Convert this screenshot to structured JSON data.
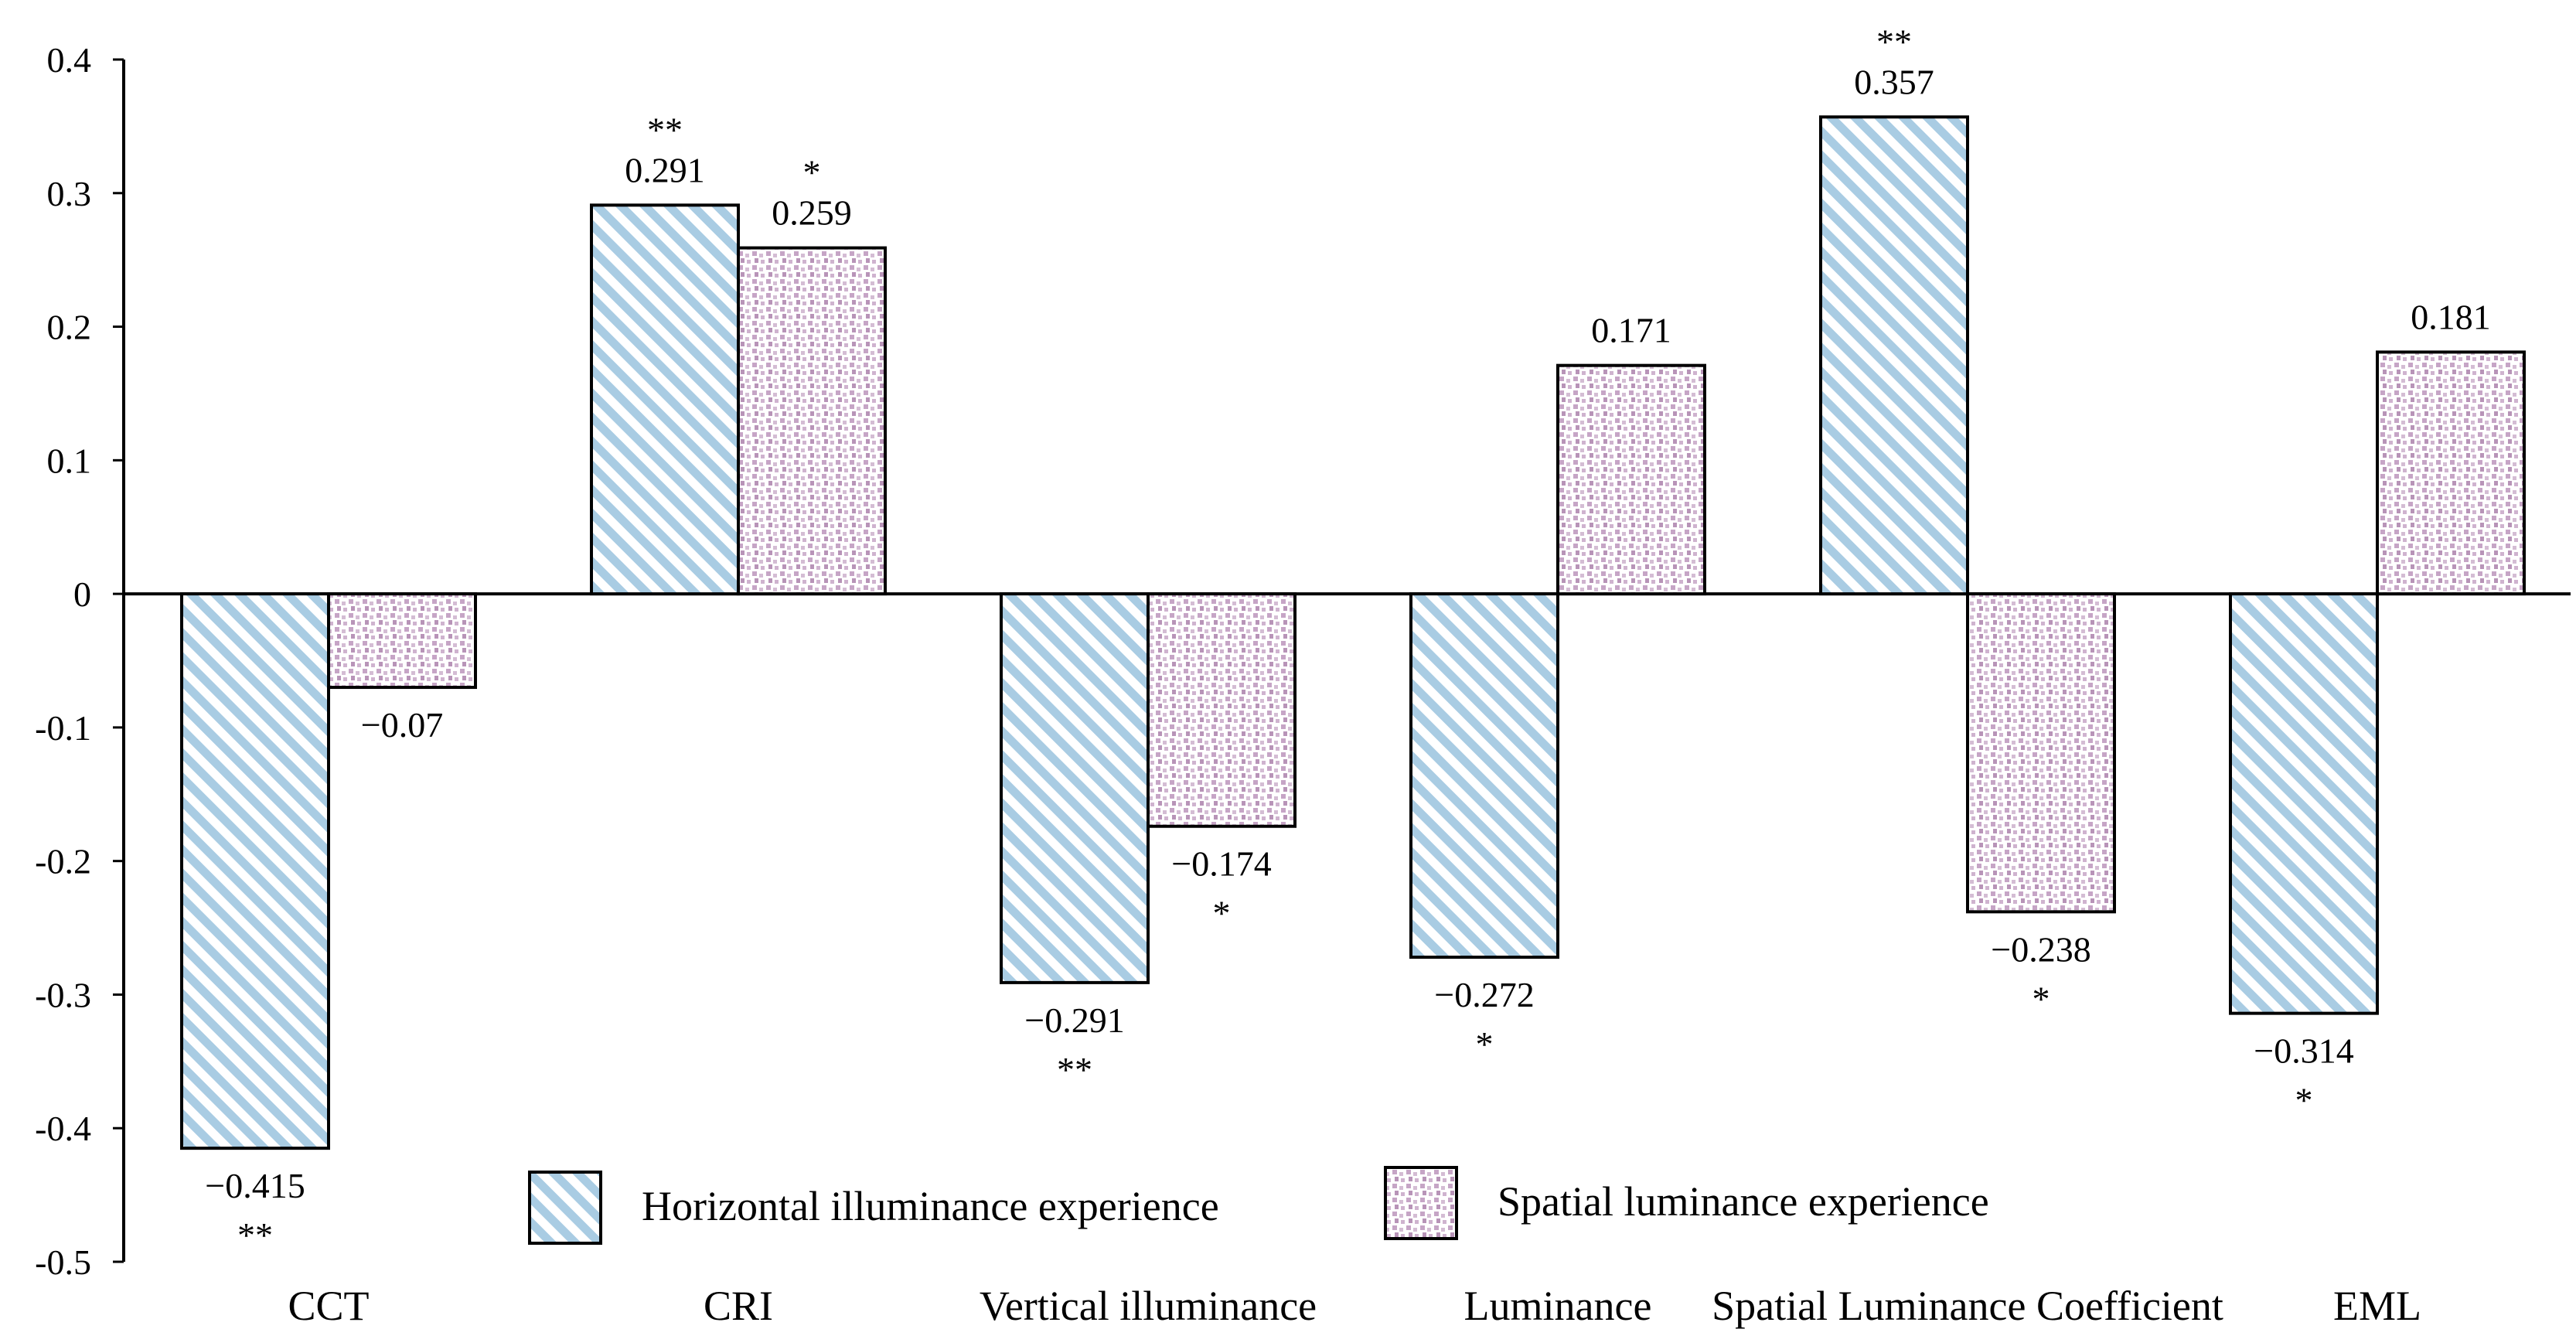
{
  "chart_data": {
    "type": "bar",
    "categories": [
      "CCT",
      "CRI",
      "Vertical illuminance",
      "Luminance",
      "Spatial Luminance Coefficient",
      "EML"
    ],
    "series": [
      {
        "name": "Horizontal illuminance experience",
        "values": [
          -0.415,
          0.291,
          -0.291,
          -0.272,
          0.357,
          -0.314
        ],
        "value_labels": [
          "−0.415",
          "0.291",
          "−0.291",
          "−0.272",
          "0.357",
          "−0.314"
        ],
        "significance": [
          "**",
          "**",
          "**",
          "*",
          "**",
          "*"
        ],
        "color": "#a9cce3",
        "pattern": "diagonal-stripes"
      },
      {
        "name": "Spatial luminance experience",
        "values": [
          -0.07,
          0.259,
          -0.174,
          0.171,
          -0.238,
          0.181
        ],
        "value_labels": [
          "−0.07",
          "0.259",
          "−0.174",
          "0.171",
          "−0.238",
          "0.181"
        ],
        "significance": [
          "",
          "*",
          "*",
          "",
          "*",
          ""
        ],
        "color": "#c9aec9",
        "pattern": "dots"
      }
    ],
    "y_ticks": [
      0.4,
      0.3,
      0.2,
      0.1,
      0,
      -0.1,
      -0.2,
      -0.3,
      -0.4,
      -0.5
    ],
    "y_tick_labels": [
      "0.4",
      "0.3",
      "0.2",
      "0.1",
      "0",
      "-0.1",
      "-0.2",
      "-0.3",
      "-0.4",
      "-0.5"
    ],
    "ylim": [
      -0.5,
      0.4
    ],
    "grid": false,
    "legend_position": "bottom-center"
  }
}
